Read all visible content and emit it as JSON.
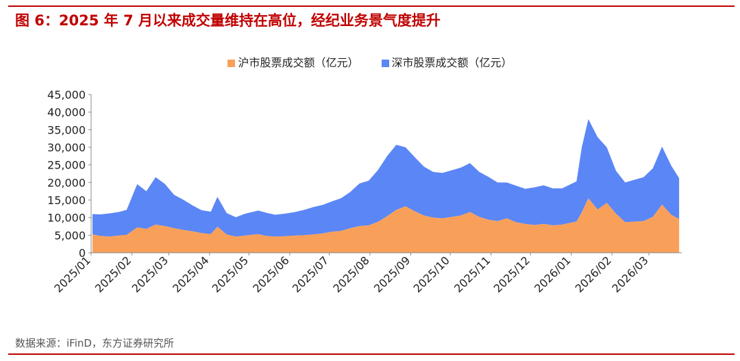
{
  "header": {
    "title": "图 6：2025 年 7 月以来成交量维持在高位，经纪业务景气度提升"
  },
  "footer": {
    "source": "数据来源：iFinD，东方证券研究所"
  },
  "colors": {
    "accent": "#c00000",
    "shanghai": "#f8a05a",
    "shenzhen": "#5b86f5"
  },
  "chart_data": {
    "type": "area",
    "stacked": true,
    "title": "",
    "xlabel": "",
    "ylabel": "",
    "ylim": [
      0,
      45000
    ],
    "yticks": [
      0,
      5000,
      10000,
      15000,
      20000,
      25000,
      30000,
      35000,
      40000,
      45000
    ],
    "ytick_labels": [
      "0",
      "5,000",
      "10,000",
      "15,000",
      "20,000",
      "25,000",
      "30,000",
      "35,000",
      "40,000",
      "45,000"
    ],
    "xtick_labels": [
      "2025/01",
      "2025/02",
      "2025/03",
      "2025/04",
      "2025/05",
      "2025/06",
      "2025/07",
      "2025/08",
      "2025/09",
      "2025/10",
      "2025/11",
      "2025/12",
      "2026/01",
      "2026/02",
      "2026/03"
    ],
    "legend_position": "top-center",
    "grid": false,
    "x": [
      "2025/01/02",
      "2025/01/08",
      "2025/01/15",
      "2025/01/22",
      "2025/01/28",
      "2025/02/05",
      "2025/02/12",
      "2025/02/19",
      "2025/02/26",
      "2025/03/05",
      "2025/03/12",
      "2025/03/19",
      "2025/03/26",
      "2025/04/02",
      "2025/04/07",
      "2025/04/14",
      "2025/04/21",
      "2025/04/28",
      "2025/05/08",
      "2025/05/14",
      "2025/05/21",
      "2025/05/28",
      "2025/06/05",
      "2025/06/12",
      "2025/06/19",
      "2025/06/26",
      "2025/07/03",
      "2025/07/10",
      "2025/07/17",
      "2025/07/24",
      "2025/07/31",
      "2025/08/07",
      "2025/08/14",
      "2025/08/21",
      "2025/08/28",
      "2025/09/04",
      "2025/09/11",
      "2025/09/18",
      "2025/09/25",
      "2025/10/09",
      "2025/10/16",
      "2025/10/23",
      "2025/10/30",
      "2025/11/06",
      "2025/11/13",
      "2025/11/20",
      "2025/11/27",
      "2025/12/04",
      "2025/12/11",
      "2025/12/18",
      "2025/12/25",
      "2026/01/05",
      "2026/01/09",
      "2026/01/14",
      "2026/01/21",
      "2026/01/28",
      "2026/02/04",
      "2026/02/11",
      "2026/02/25",
      "2026/03/04",
      "2026/03/11",
      "2026/03/18",
      "2026/03/24"
    ],
    "series": [
      {
        "name": "沪市股票成交额（亿元）",
        "color": "#f8a05a",
        "values": [
          5200,
          4800,
          4600,
          4900,
          5100,
          7200,
          6800,
          8000,
          7600,
          7000,
          6500,
          6100,
          5600,
          5300,
          7400,
          5200,
          4600,
          4900,
          5300,
          4800,
          4600,
          4700,
          4900,
          5000,
          5200,
          5500,
          6000,
          6200,
          7000,
          7600,
          7800,
          8800,
          10400,
          12200,
          13200,
          11800,
          10600,
          10000,
          9800,
          10600,
          11600,
          10200,
          9400,
          9000,
          9800,
          8700,
          8200,
          7900,
          8200,
          7800,
          8000,
          8900,
          11500,
          15500,
          12300,
          14200,
          11100,
          8700,
          9000,
          10200,
          13700,
          10800,
          9600
        ]
      },
      {
        "name": "深市股票成交额（亿元）",
        "color": "#5b86f5",
        "values": [
          5800,
          6100,
          6600,
          6700,
          7100,
          12300,
          10700,
          13500,
          12000,
          9500,
          8600,
          7400,
          6500,
          6400,
          8500,
          6100,
          5500,
          6200,
          6700,
          6600,
          6200,
          6400,
          6700,
          7200,
          7800,
          8100,
          8600,
          9300,
          10300,
          12100,
          12700,
          14700,
          17100,
          18500,
          16800,
          15400,
          13900,
          13000,
          12900,
          13600,
          13900,
          12800,
          12200,
          11000,
          10200,
          10400,
          10000,
          10700,
          11000,
          10500,
          10300,
          11400,
          18500,
          22500,
          20600,
          15800,
          12200,
          11300,
          12500,
          13800,
          16500,
          14000,
          11600
        ]
      }
    ]
  }
}
